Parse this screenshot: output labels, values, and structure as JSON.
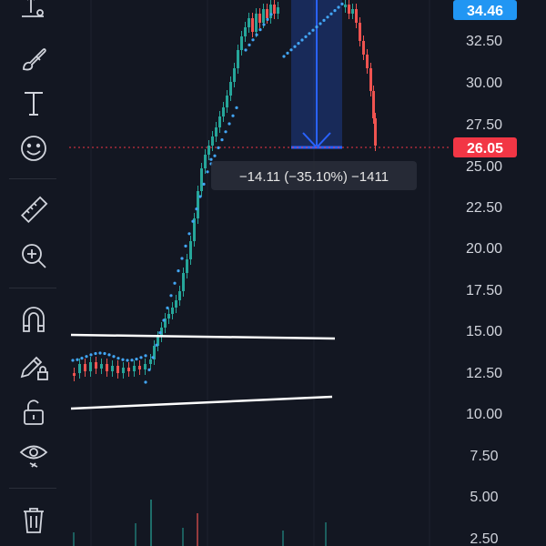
{
  "toolbar": {
    "tools": [
      {
        "name": "anchored-text-tool-icon"
      },
      {
        "name": "brush-tool-icon"
      },
      {
        "name": "text-tool-icon"
      },
      {
        "name": "emoji-tool-icon"
      },
      {
        "name": "ruler-tool-icon"
      },
      {
        "name": "zoom-in-tool-icon"
      },
      {
        "name": "magnet-tool-icon"
      },
      {
        "name": "lock-drawing-tool-icon"
      },
      {
        "name": "unlock-tool-icon"
      },
      {
        "name": "visibility-tool-icon"
      },
      {
        "name": "trash-tool-icon"
      }
    ]
  },
  "price_axis": {
    "labels": [
      "32.50",
      "30.00",
      "27.50",
      "25.00",
      "22.50",
      "20.00",
      "17.50",
      "15.00",
      "12.50",
      "10.00",
      "7.50",
      "5.00",
      "2.50"
    ]
  },
  "badges": {
    "high_price": "34.46",
    "current_price": "26.05"
  },
  "measurement": {
    "label": "−14.11 (−35.10%) −1411"
  },
  "colors": {
    "background": "#131722",
    "up": "#26a69a",
    "down": "#ef5350",
    "dots": "#42a5f5",
    "measure_fill": "#2962ff",
    "badge_blue": "#2196f3",
    "badge_red": "#f23645",
    "axis_text": "#d1d4dc"
  }
}
